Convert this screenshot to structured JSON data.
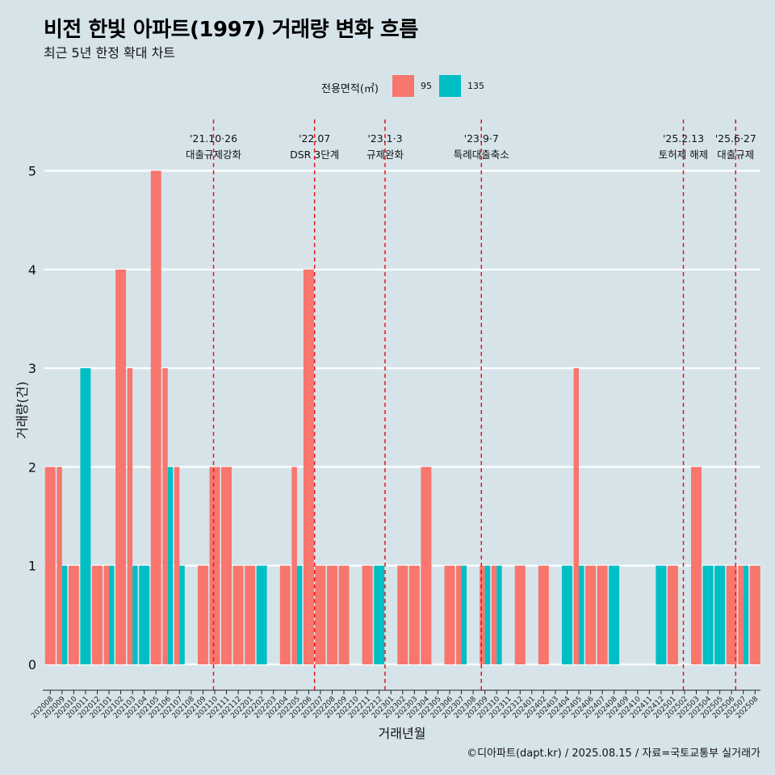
{
  "chart_data": {
    "type": "bar",
    "title": "비전 한빛 아파트(1997) 거래량 변화 흐름",
    "subtitle": "최근 5년 한정 확대 차트",
    "xlabel": "거래년월",
    "ylabel": "거래량(건)",
    "ylim": [
      0,
      5
    ],
    "yticks": [
      0,
      1,
      2,
      3,
      4,
      5
    ],
    "legend_title": "전용면적(㎡)",
    "caption": "©디아파트(dapt.kr) / 2025.08.15 / 자료=국토교통부 실거래가",
    "categories": [
      "202008",
      "202009",
      "202010",
      "202011",
      "202012",
      "202101",
      "202102",
      "202103",
      "202104",
      "202105",
      "202106",
      "202107",
      "202108",
      "202109",
      "202110",
      "202111",
      "202112",
      "202201",
      "202202",
      "202203",
      "202204",
      "202205",
      "202206",
      "202207",
      "202208",
      "202209",
      "202210",
      "202211",
      "202212",
      "202301",
      "202302",
      "202303",
      "202304",
      "202305",
      "202306",
      "202307",
      "202308",
      "202309",
      "202310",
      "202311",
      "202312",
      "202401",
      "202402",
      "202403",
      "202404",
      "202405",
      "202406",
      "202407",
      "202408",
      "202409",
      "202410",
      "202411",
      "202412",
      "202501",
      "202502",
      "202503",
      "202504",
      "202505",
      "202506",
      "202507",
      "202508"
    ],
    "series": [
      {
        "name": "95",
        "color": "#f8766d",
        "values": [
          2,
          2,
          1,
          0,
          1,
          1,
          4,
          3,
          0,
          5,
          3,
          2,
          0,
          1,
          2,
          2,
          1,
          1,
          0,
          0,
          1,
          2,
          4,
          1,
          1,
          1,
          0,
          1,
          0,
          0,
          1,
          1,
          2,
          0,
          1,
          1,
          0,
          1,
          1,
          0,
          1,
          0,
          1,
          0,
          0,
          3,
          1,
          1,
          0,
          0,
          0,
          0,
          0,
          1,
          0,
          2,
          0,
          0,
          1,
          1,
          1
        ]
      },
      {
        "name": "135",
        "color": "#00bfc4",
        "values": [
          0,
          1,
          0,
          3,
          0,
          1,
          0,
          1,
          1,
          0,
          2,
          1,
          0,
          0,
          0,
          0,
          0,
          0,
          1,
          0,
          0,
          1,
          0,
          0,
          0,
          0,
          0,
          0,
          1,
          0,
          0,
          0,
          0,
          0,
          0,
          1,
          0,
          1,
          1,
          0,
          0,
          0,
          0,
          0,
          1,
          1,
          0,
          0,
          1,
          0,
          0,
          0,
          1,
          0,
          0,
          0,
          1,
          1,
          0,
          1,
          0
        ]
      }
    ],
    "events": [
      {
        "date": "'21.10·26",
        "label": "대출규제강화",
        "month": "202110",
        "offset": 0.4
      },
      {
        "date": "'22.07",
        "label": "DSR 3단계",
        "month": "202207",
        "offset": 0.0
      },
      {
        "date": "'23.1·3",
        "label": "규제완화",
        "month": "202301",
        "offset": 0.0
      },
      {
        "date": "'23.9·7",
        "label": "특례대출축소",
        "month": "202309",
        "offset": 0.2
      },
      {
        "date": "'25.2.13",
        "label": "토허제 해제",
        "month": "202502",
        "offset": 0.4
      },
      {
        "date": "'25.6·27",
        "label": "대출규제",
        "month": "202506",
        "offset": 0.85
      }
    ]
  }
}
